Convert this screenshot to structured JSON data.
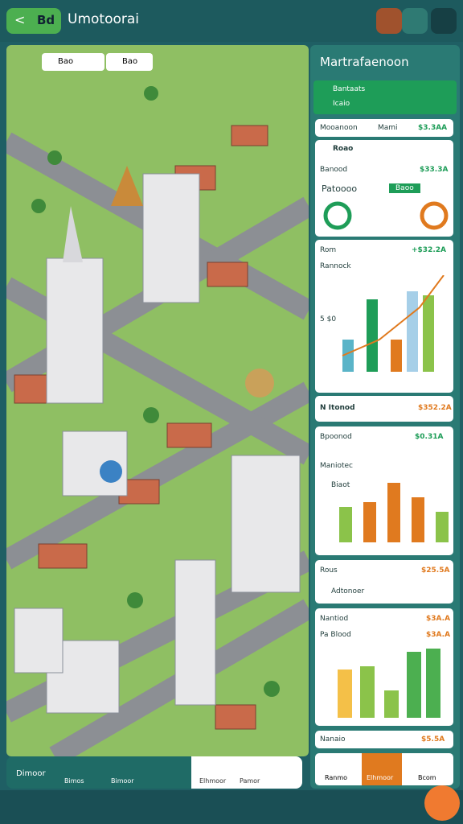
{
  "header": {
    "back_label": "Bd",
    "title": "Umotoorai"
  },
  "map": {
    "chips": [
      "Bao",
      "Bao"
    ],
    "bottom_nav": [
      "Dimoor",
      "Bimos",
      "Bimoor",
      "Elhmoor",
      "Pamor"
    ]
  },
  "panel": {
    "title": "Martrafaenoon",
    "links": [
      "Bantaats",
      "Icaio"
    ],
    "table_head": [
      "Mooanoon",
      "Mami",
      "$3.3AA"
    ],
    "card1": {
      "title": "Roao",
      "label": "Banood",
      "value": "$33.3A",
      "sub": "Patoooo",
      "btn": "Baoo"
    },
    "card2": {
      "title": "Rom",
      "value": "+$32.2A",
      "label": "Rannock",
      "axis": [
        "5 $0"
      ]
    },
    "card3": {
      "title": "N Itonod",
      "value": "$352.2A"
    },
    "card4": {
      "title": "Bpoonod",
      "value": "$0.31A",
      "label": "Maniotec",
      "sub": "Biaot"
    },
    "card5": {
      "title": "Rous",
      "value": "$25.5A",
      "label": "Adtonoer"
    },
    "card6": {
      "title": "Nantiod",
      "value": "$3A.A",
      "label": "Pa Blood",
      "value2": "$3A.A"
    },
    "card7": {
      "title": "Nanaio",
      "value": "$5.5A"
    },
    "bottom_tabs": [
      "Ranmo",
      "Elhmoor",
      "Bcom"
    ]
  }
}
